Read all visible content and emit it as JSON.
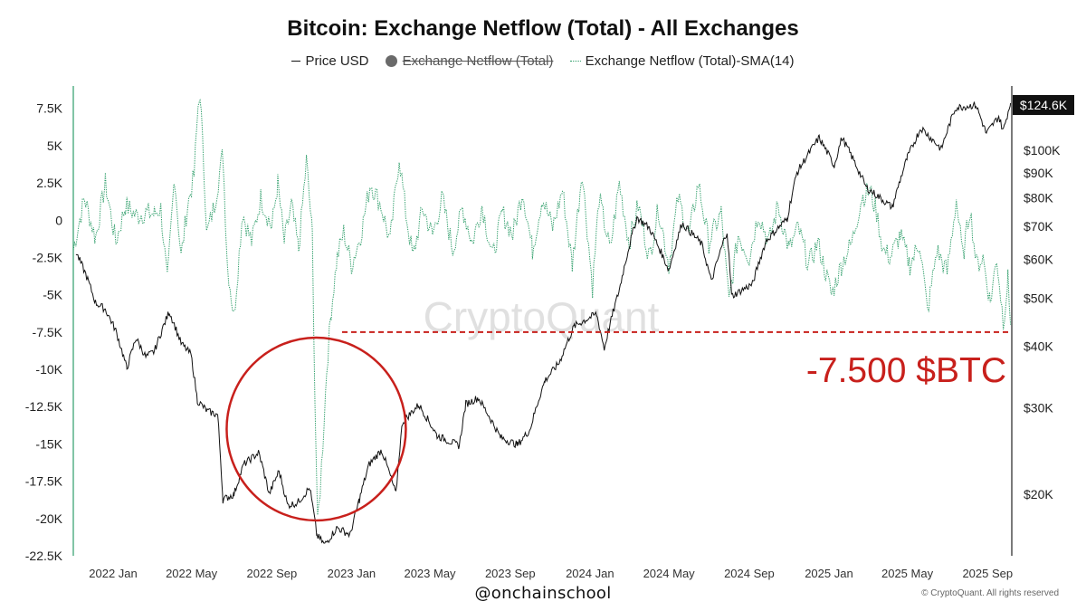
{
  "title": "Bitcoin: Exchange Netflow (Total) - All Exchanges",
  "legend": {
    "price": "Price USD",
    "netflow": "Exchange Netflow (Total)",
    "sma": "Exchange Netflow (Total)-SMA(14)"
  },
  "watermark": "CryptoQuant",
  "annotation": "-7.500 $BTC",
  "current_price_badge": "$124.6K",
  "handle": "@onchainschool",
  "copyright": "© CryptoQuant. All rights reserved",
  "colors": {
    "price_line": "#111111",
    "sma_line": "#2f9e6a",
    "annotation": "#c8201c",
    "grid_axis": "#2f9e6a"
  },
  "chart_data": {
    "type": "line",
    "title": "Bitcoin: Exchange Netflow (Total) - All Exchanges",
    "x": {
      "range": [
        "2021-11-01",
        "2025-10-08"
      ],
      "ticks": [
        {
          "date": "2022-01-01",
          "label": "2022 Jan"
        },
        {
          "date": "2022-05-01",
          "label": "2022 May"
        },
        {
          "date": "2022-09-01",
          "label": "2022 Sep"
        },
        {
          "date": "2023-01-01",
          "label": "2023 Jan"
        },
        {
          "date": "2023-05-01",
          "label": "2023 May"
        },
        {
          "date": "2023-09-01",
          "label": "2023 Sep"
        },
        {
          "date": "2024-01-01",
          "label": "2024 Jan"
        },
        {
          "date": "2024-05-01",
          "label": "2024 May"
        },
        {
          "date": "2024-09-01",
          "label": "2024 Sep"
        },
        {
          "date": "2025-01-01",
          "label": "2025 Jan"
        },
        {
          "date": "2025-05-01",
          "label": "2025 May"
        },
        {
          "date": "2025-09-01",
          "label": "2025 Sep"
        }
      ]
    },
    "y_left": {
      "range": [
        -22500,
        9000
      ],
      "ticks": [
        7500,
        5000,
        2500,
        0,
        -2500,
        -5000,
        -7500,
        -10000,
        -12500,
        -15000,
        -17500,
        -20000,
        -22500
      ],
      "tick_labels": [
        "7.5K",
        "5K",
        "2.5K",
        "0",
        "-2.5K",
        "-5K",
        "-7.5K",
        "-10K",
        "-12.5K",
        "-15K",
        "-17.5K",
        "-20K",
        "-22.5K"
      ]
    },
    "y_right": {
      "scale": "log",
      "range": [
        15000,
        135000
      ],
      "ticks": [
        100000,
        90000,
        80000,
        70000,
        60000,
        50000,
        40000,
        30000,
        20000
      ],
      "tick_labels": [
        "$100K",
        "$90K",
        "$80K",
        "$70K",
        "$60K",
        "$50K",
        "$40K",
        "$30K",
        "$20K"
      ]
    },
    "series": [
      {
        "name": "Price USD",
        "axis": "right",
        "points": [
          [
            "2021-11-05",
            62000
          ],
          [
            "2021-11-20",
            56000
          ],
          [
            "2021-12-05",
            49000
          ],
          [
            "2021-12-20",
            47500
          ],
          [
            "2022-01-05",
            43000
          ],
          [
            "2022-01-22",
            36000
          ],
          [
            "2022-02-05",
            41500
          ],
          [
            "2022-02-20",
            38000
          ],
          [
            "2022-03-05",
            39000
          ],
          [
            "2022-03-28",
            47000
          ],
          [
            "2022-04-15",
            40500
          ],
          [
            "2022-04-30",
            38500
          ],
          [
            "2022-05-10",
            31000
          ],
          [
            "2022-05-25",
            29500
          ],
          [
            "2022-06-10",
            29000
          ],
          [
            "2022-06-18",
            19500
          ],
          [
            "2022-07-05",
            20000
          ],
          [
            "2022-07-20",
            23000
          ],
          [
            "2022-08-12",
            24300
          ],
          [
            "2022-08-28",
            20000
          ],
          [
            "2022-09-12",
            22300
          ],
          [
            "2022-09-25",
            19000
          ],
          [
            "2022-10-10",
            19200
          ],
          [
            "2022-10-29",
            20600
          ],
          [
            "2022-11-09",
            16500
          ],
          [
            "2022-11-21",
            15800
          ],
          [
            "2022-12-10",
            17100
          ],
          [
            "2022-12-30",
            16550
          ],
          [
            "2023-01-13",
            19500
          ],
          [
            "2023-01-28",
            23000
          ],
          [
            "2023-02-16",
            24600
          ],
          [
            "2023-03-10",
            20000
          ],
          [
            "2023-03-20",
            28000
          ],
          [
            "2023-04-14",
            30400
          ],
          [
            "2023-05-12",
            26300
          ],
          [
            "2023-06-15",
            25100
          ],
          [
            "2023-06-25",
            30500
          ],
          [
            "2023-07-14",
            31400
          ],
          [
            "2023-08-17",
            26100
          ],
          [
            "2023-09-12",
            25200
          ],
          [
            "2023-10-01",
            27000
          ],
          [
            "2023-10-24",
            34000
          ],
          [
            "2023-11-15",
            37000
          ],
          [
            "2023-12-08",
            43900
          ],
          [
            "2024-01-11",
            46500
          ],
          [
            "2024-01-23",
            39500
          ],
          [
            "2024-02-15",
            52000
          ],
          [
            "2024-03-13",
            73000
          ],
          [
            "2024-04-01",
            69500
          ],
          [
            "2024-05-01",
            57000
          ],
          [
            "2024-05-21",
            71000
          ],
          [
            "2024-06-20",
            64500
          ],
          [
            "2024-07-05",
            54000
          ],
          [
            "2024-07-29",
            68500
          ],
          [
            "2024-08-05",
            50500
          ],
          [
            "2024-09-06",
            53500
          ],
          [
            "2024-09-27",
            65500
          ],
          [
            "2024-10-29",
            72500
          ],
          [
            "2024-11-13",
            90000
          ],
          [
            "2024-12-17",
            106000
          ],
          [
            "2025-01-09",
            93000
          ],
          [
            "2025-01-21",
            106000
          ],
          [
            "2025-02-27",
            84000
          ],
          [
            "2025-04-08",
            76500
          ],
          [
            "2025-05-01",
            96500
          ],
          [
            "2025-05-22",
            111000
          ],
          [
            "2025-06-22",
            100500
          ],
          [
            "2025-07-14",
            122000
          ],
          [
            "2025-08-14",
            123500
          ],
          [
            "2025-08-30",
            108000
          ],
          [
            "2025-09-18",
            117000
          ],
          [
            "2025-09-25",
            109500
          ],
          [
            "2025-10-06",
            124600
          ]
        ]
      },
      {
        "name": "Exchange Netflow (Total)-SMA(14)",
        "axis": "left",
        "points": [
          [
            "2021-11-01",
            -2000
          ],
          [
            "2021-11-18",
            1500
          ],
          [
            "2021-12-05",
            -1200
          ],
          [
            "2021-12-20",
            2500
          ],
          [
            "2022-01-05",
            -1500
          ],
          [
            "2022-01-20",
            1000
          ],
          [
            "2022-02-05",
            300
          ],
          [
            "2022-02-20",
            500
          ],
          [
            "2022-03-05",
            400
          ],
          [
            "2022-03-15",
            800
          ],
          [
            "2022-03-25",
            -4200
          ],
          [
            "2022-04-05",
            3000
          ],
          [
            "2022-04-15",
            -2500
          ],
          [
            "2022-04-25",
            1000
          ],
          [
            "2022-05-05",
            3000
          ],
          [
            "2022-05-12",
            8400
          ],
          [
            "2022-05-18",
            6000
          ],
          [
            "2022-05-24",
            -1000
          ],
          [
            "2022-06-05",
            1000
          ],
          [
            "2022-06-18",
            4500
          ],
          [
            "2022-06-25",
            -3000
          ],
          [
            "2022-07-05",
            -6500
          ],
          [
            "2022-07-18",
            500
          ],
          [
            "2022-08-01",
            -1500
          ],
          [
            "2022-08-15",
            1500
          ],
          [
            "2022-09-01",
            -500
          ],
          [
            "2022-09-10",
            2500
          ],
          [
            "2022-09-20",
            -1500
          ],
          [
            "2022-10-01",
            1000
          ],
          [
            "2022-10-12",
            -2000
          ],
          [
            "2022-10-24",
            4000
          ],
          [
            "2022-11-02",
            -1000
          ],
          [
            "2022-11-06",
            -12000
          ],
          [
            "2022-11-10",
            -20500
          ],
          [
            "2022-11-14",
            -18000
          ],
          [
            "2022-11-18",
            -15000
          ],
          [
            "2022-11-24",
            -10000
          ],
          [
            "2022-12-01",
            -6000
          ],
          [
            "2022-12-10",
            -2500
          ],
          [
            "2022-12-20",
            -800
          ],
          [
            "2023-01-01",
            -3000
          ],
          [
            "2023-01-15",
            -1000
          ],
          [
            "2023-01-30",
            2500
          ],
          [
            "2023-02-15",
            1000
          ],
          [
            "2023-03-01",
            -1500
          ],
          [
            "2023-03-15",
            4300
          ],
          [
            "2023-03-25",
            500
          ],
          [
            "2023-04-05",
            -2500
          ],
          [
            "2023-04-20",
            800
          ],
          [
            "2023-05-05",
            -1000
          ],
          [
            "2023-05-20",
            1500
          ],
          [
            "2023-06-05",
            -2000
          ],
          [
            "2023-06-20",
            800
          ],
          [
            "2023-07-05",
            -1500
          ],
          [
            "2023-07-20",
            1000
          ],
          [
            "2023-08-05",
            -2500
          ],
          [
            "2023-08-20",
            500
          ],
          [
            "2023-09-05",
            -1000
          ],
          [
            "2023-09-20",
            2000
          ],
          [
            "2023-10-05",
            -2000
          ],
          [
            "2023-10-20",
            1500
          ],
          [
            "2023-11-05",
            -500
          ],
          [
            "2023-11-20",
            2000
          ],
          [
            "2023-12-05",
            -3000
          ],
          [
            "2023-12-20",
            3300
          ],
          [
            "2024-01-05",
            -4500
          ],
          [
            "2024-01-15",
            1500
          ],
          [
            "2024-02-01",
            -2000
          ],
          [
            "2024-02-15",
            2500
          ],
          [
            "2024-03-01",
            -1500
          ],
          [
            "2024-03-15",
            1000
          ],
          [
            "2024-04-01",
            -2500
          ],
          [
            "2024-04-15",
            800
          ],
          [
            "2024-05-01",
            -3000
          ],
          [
            "2024-05-15",
            1500
          ],
          [
            "2024-06-01",
            -1000
          ],
          [
            "2024-06-15",
            2500
          ],
          [
            "2024-07-01",
            -1500
          ],
          [
            "2024-07-20",
            500
          ],
          [
            "2024-08-01",
            -5500
          ],
          [
            "2024-08-15",
            -1000
          ],
          [
            "2024-09-01",
            -2500
          ],
          [
            "2024-09-15",
            500
          ],
          [
            "2024-10-01",
            -1500
          ],
          [
            "2024-10-15",
            1000
          ],
          [
            "2024-11-01",
            -2000
          ],
          [
            "2024-11-15",
            -500
          ],
          [
            "2024-12-01",
            -3000
          ],
          [
            "2024-12-15",
            -1500
          ],
          [
            "2025-01-05",
            -5000
          ],
          [
            "2025-01-20",
            -3000
          ],
          [
            "2025-02-05",
            -1500
          ],
          [
            "2025-02-20",
            1500
          ],
          [
            "2025-03-05",
            2000
          ],
          [
            "2025-03-15",
            500
          ],
          [
            "2025-03-25",
            -2000
          ],
          [
            "2025-04-05",
            -2500
          ],
          [
            "2025-04-20",
            -1000
          ],
          [
            "2025-05-05",
            -3000
          ],
          [
            "2025-05-20",
            -1500
          ],
          [
            "2025-06-01",
            -6200
          ],
          [
            "2025-06-15",
            -2000
          ],
          [
            "2025-07-01",
            -3500
          ],
          [
            "2025-07-15",
            1400
          ],
          [
            "2025-07-25",
            -2500
          ],
          [
            "2025-08-05",
            800
          ],
          [
            "2025-08-15",
            -3000
          ],
          [
            "2025-08-25",
            -2500
          ],
          [
            "2025-09-05",
            -5500
          ],
          [
            "2025-09-15",
            -2500
          ],
          [
            "2025-09-25",
            -6800
          ],
          [
            "2025-10-02",
            -4000
          ],
          [
            "2025-10-06",
            -7000
          ]
        ]
      }
    ],
    "reference_line": {
      "value": -7500,
      "axis": "left",
      "label": "-7.500 $BTC"
    },
    "highlight_circle": {
      "center_date": "2022-11-08",
      "center_value": -14000
    }
  }
}
